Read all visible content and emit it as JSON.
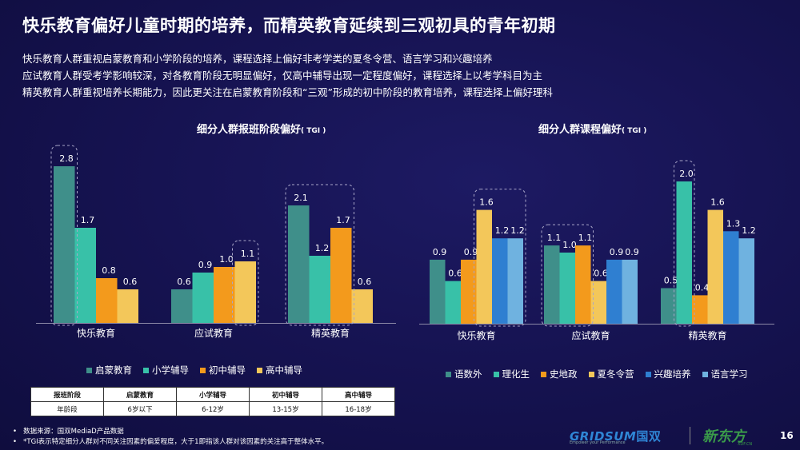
{
  "title": "快乐教育偏好儿童时期的培养，而精英教育延续到三观初具的青年初期",
  "subtitles": [
    "快乐教育人群重视启蒙教育和小学阶段的培养，课程选择上偏好非考学类的夏冬令营、语言学习和兴趣培养",
    "应试教育人群受考学影响较深，对各教育阶段无明显偏好，仅高中辅导出现一定程度偏好，课程选择上以考学科目为主",
    "精英教育人群重视培养长期能力，因此更关注在启蒙教育阶段和“三观”形成的初中阶段的教育培养，课程选择上偏好理科"
  ],
  "chart_data": [
    {
      "type": "bar",
      "title": "细分人群报班阶段偏好",
      "title_suffix": "( TGI )",
      "categories": [
        "快乐教育",
        "应试教育",
        "精英教育"
      ],
      "series": [
        {
          "name": "启蒙教育",
          "color": "#3f8f8a",
          "values": [
            2.8,
            0.6,
            2.1
          ]
        },
        {
          "name": "小学辅导",
          "color": "#38c1a8",
          "values": [
            1.7,
            0.9,
            1.2
          ]
        },
        {
          "name": "初中辅导",
          "color": "#f39a1c",
          "values": [
            0.8,
            1.0,
            1.7
          ]
        },
        {
          "name": "高中辅导",
          "color": "#f3c75a",
          "values": [
            0.6,
            1.1,
            0.6
          ]
        }
      ],
      "labels": [
        [
          "2.8",
          "1.7",
          "0.8",
          "0.6"
        ],
        [
          "0.6",
          "0.9",
          "1.0",
          "1.1"
        ],
        [
          "2.1",
          "1.2",
          "1.7",
          "0.6"
        ]
      ],
      "highlight": [
        [
          0,
          0
        ],
        [
          1,
          3
        ],
        [
          2,
          0,
          2
        ]
      ],
      "legend_position": "bottom",
      "ylim": [
        0,
        3.1
      ]
    },
    {
      "type": "bar",
      "title": "细分人群课程偏好",
      "title_suffix": "( TGI )",
      "categories": [
        "快乐教育",
        "应试教育",
        "精英教育"
      ],
      "series": [
        {
          "name": "语数外",
          "color": "#3f8f8a",
          "values": [
            0.9,
            1.1,
            0.5
          ]
        },
        {
          "name": "理化生",
          "color": "#38c1a8",
          "values": [
            0.6,
            1.0,
            2.0
          ]
        },
        {
          "name": "史地政",
          "color": "#f39a1c",
          "values": [
            0.9,
            1.1,
            0.4
          ]
        },
        {
          "name": "夏冬令营",
          "color": "#f3c75a",
          "values": [
            1.6,
            0.6,
            1.6
          ]
        },
        {
          "name": "兴趣培养",
          "color": "#2f7fd1",
          "values": [
            1.2,
            0.9,
            1.3
          ]
        },
        {
          "name": "语言学习",
          "color": "#6fb2e0",
          "values": [
            1.2,
            0.9,
            1.2
          ]
        }
      ],
      "labels": [
        [
          "0.9",
          "0.6",
          "0.9",
          "1.6",
          "1.2",
          "1.2"
        ],
        [
          "1.1",
          "1.0",
          "1.1",
          "0.6",
          "0.9",
          "0.9"
        ],
        [
          "0.5",
          "2.0",
          "0.4",
          "1.6",
          "1.3",
          "1.2"
        ]
      ],
      "highlight": [
        [
          0,
          3,
          5
        ],
        [
          1,
          0,
          2
        ],
        [
          2,
          1,
          1
        ]
      ],
      "legend_position": "bottom",
      "ylim": [
        0,
        2.3
      ]
    }
  ],
  "table": {
    "headers": [
      "报班阶段",
      "启蒙教育",
      "小学辅导",
      "初中辅导",
      "高中辅导"
    ],
    "row": [
      "年龄段",
      "6岁以下",
      "6-12岁",
      "13-15岁",
      "16-18岁"
    ]
  },
  "notes": [
    "数据来源：国双MediaD产品数据",
    "*TGI表示特定细分人群对不同关注因素的偏爱程度，大于1即指该人群对该因素的关注高于整体水平。"
  ],
  "logos": {
    "gridsum": "GRIDSUM",
    "gridsum_cn": "国双",
    "gridsum_tag": "Empower your Performance",
    "xdf": "新东方",
    "xdf_url": "XDF.CN"
  },
  "page_number": "16"
}
